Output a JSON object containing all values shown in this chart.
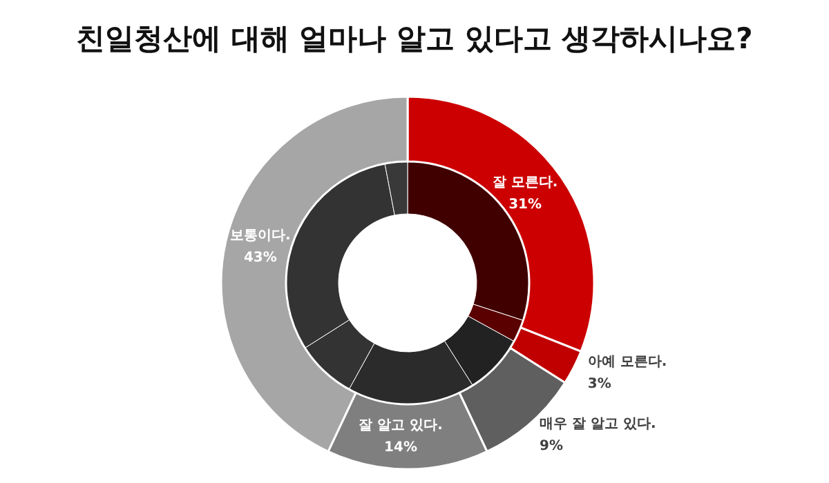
{
  "chart_data": [
    {
      "type": "donut",
      "title": "친일청산에 대해 얼마나 알고 있다고 생각하시나요?",
      "categories": [
        "잘 모른다.",
        "아예 모른다.",
        "매우 잘 알고 있다.",
        "잘 알고 있다.",
        "보통이다."
      ],
      "values": [
        31,
        3,
        9,
        14,
        43
      ],
      "colors": [
        "#cc0000",
        "#c00000",
        "#5f5f5f",
        "#7f7f7f",
        "#a6a6a6"
      ],
      "value_labels": [
        "31%",
        "3%",
        "9%",
        "14%",
        "43%"
      ]
    },
    {
      "type": "donut",
      "categories": [
        null,
        null,
        null,
        null,
        null,
        null,
        null
      ],
      "values": [
        30,
        3,
        8,
        17,
        8,
        31,
        3
      ],
      "colors": [
        "#400000",
        "#5a0000",
        "#222222",
        "#2b2b2b",
        "#333333",
        "#333333",
        "#393939"
      ]
    }
  ]
}
